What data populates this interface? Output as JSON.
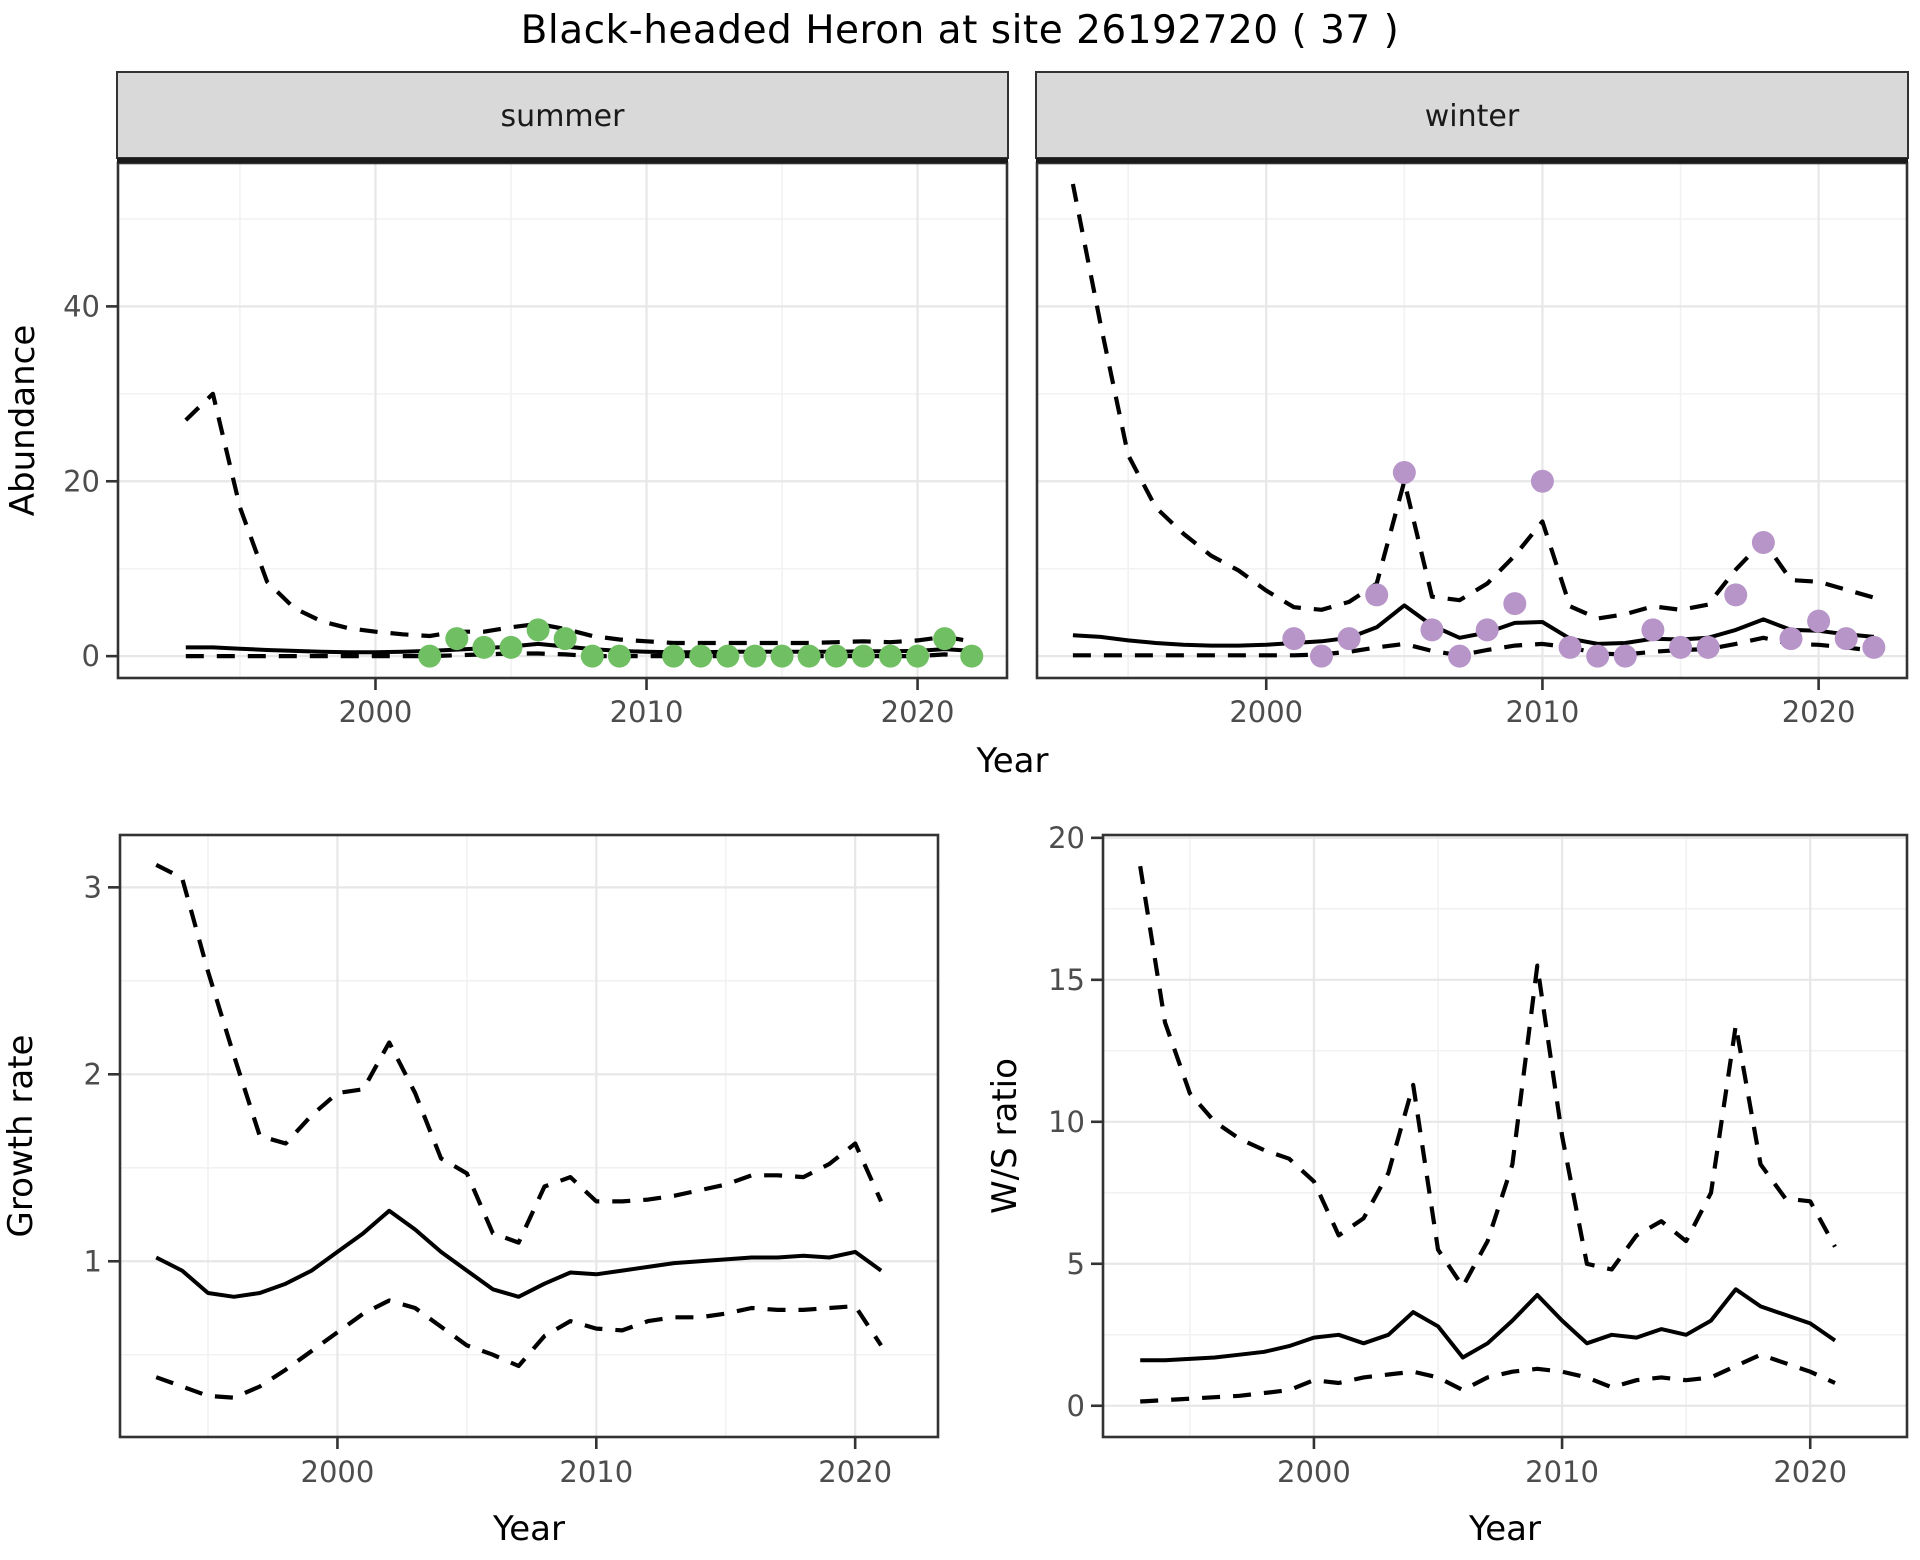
{
  "title": "Black-headed Heron at site 26192720 ( 37 )",
  "shared": {
    "top_xlabel": "Year"
  },
  "colors": {
    "summer_point": "#70BF63",
    "winter_point": "#B795C9",
    "line": "#000000",
    "grid_major": "#E7E7E7",
    "grid_minor": "#F2F2F2",
    "panel_border": "#333333",
    "tick": "#333333",
    "tick_label": "#4D4D4D",
    "strip_bg": "#D9D9D9",
    "strip_text": "#1A1A1A",
    "axis_title": "#000000"
  },
  "chart_data": [
    {
      "id": "abundance-summer",
      "type": "line",
      "facet_label": "summer",
      "ylabel": "Abundance",
      "xlabel": null,
      "x_ticks": [
        2000,
        2010,
        2020
      ],
      "y_ticks": [
        0,
        20,
        40
      ],
      "y_tick_labels_visible": true,
      "xlim": [
        1990.5,
        2023.3
      ],
      "ylim": [
        -2.5,
        56.4
      ],
      "years": [
        1993,
        1994,
        1995,
        1996,
        1997,
        1998,
        1999,
        2000,
        2001,
        2002,
        2003,
        2004,
        2005,
        2006,
        2007,
        2008,
        2009,
        2010,
        2011,
        2012,
        2013,
        2014,
        2015,
        2016,
        2017,
        2018,
        2019,
        2020,
        2021,
        2022
      ],
      "series": [
        {
          "name": "median",
          "style": "solid",
          "values": [
            1.0,
            1.0,
            0.85,
            0.7,
            0.6,
            0.5,
            0.45,
            0.45,
            0.5,
            0.6,
            0.75,
            0.9,
            1.1,
            1.4,
            1.1,
            0.8,
            0.6,
            0.5,
            0.45,
            0.45,
            0.5,
            0.5,
            0.5,
            0.5,
            0.5,
            0.55,
            0.55,
            0.6,
            0.8,
            0.6
          ]
        },
        {
          "name": "upper_ci",
          "style": "dashed",
          "values": [
            27,
            30,
            17,
            8.5,
            5.5,
            4.0,
            3.2,
            2.8,
            2.5,
            2.3,
            2.8,
            2.8,
            3.3,
            3.7,
            3.1,
            2.3,
            1.9,
            1.7,
            1.5,
            1.5,
            1.5,
            1.5,
            1.5,
            1.5,
            1.6,
            1.7,
            1.6,
            1.8,
            2.2,
            1.7
          ]
        },
        {
          "name": "lower_ci",
          "style": "dashed",
          "values": [
            0,
            0,
            0,
            0,
            0,
            0,
            0,
            0,
            0,
            0,
            0.1,
            0.2,
            0.3,
            0.3,
            0.2,
            0,
            0,
            0,
            0,
            0,
            0,
            0,
            0,
            0,
            0,
            0,
            0,
            0,
            0.2,
            0
          ]
        }
      ],
      "points": {
        "color_key": "summer_point",
        "data": [
          [
            2002,
            0
          ],
          [
            2003,
            2
          ],
          [
            2004,
            1
          ],
          [
            2005,
            1
          ],
          [
            2006,
            3
          ],
          [
            2007,
            2
          ],
          [
            2008,
            0
          ],
          [
            2009,
            0
          ],
          [
            2011,
            0
          ],
          [
            2012,
            0
          ],
          [
            2013,
            0
          ],
          [
            2014,
            0
          ],
          [
            2015,
            0
          ],
          [
            2016,
            0
          ],
          [
            2017,
            0
          ],
          [
            2018,
            0
          ],
          [
            2019,
            0
          ],
          [
            2020,
            0
          ],
          [
            2021,
            2
          ],
          [
            2022,
            0
          ]
        ]
      }
    },
    {
      "id": "abundance-winter",
      "type": "line",
      "facet_label": "winter",
      "ylabel": null,
      "xlabel": null,
      "x_ticks": [
        2000,
        2010,
        2020
      ],
      "y_ticks": [
        0,
        20,
        40
      ],
      "y_tick_labels_visible": false,
      "xlim": [
        1991.7,
        2023.2
      ],
      "ylim": [
        -2.5,
        56.4
      ],
      "years": [
        1993,
        1994,
        1995,
        1996,
        1997,
        1998,
        1999,
        2000,
        2001,
        2002,
        2003,
        2004,
        2005,
        2006,
        2007,
        2008,
        2009,
        2010,
        2011,
        2012,
        2013,
        2014,
        2015,
        2016,
        2017,
        2018,
        2019,
        2020,
        2021,
        2022
      ],
      "series": [
        {
          "name": "median",
          "style": "solid",
          "values": [
            2.4,
            2.2,
            1.8,
            1.5,
            1.3,
            1.2,
            1.2,
            1.3,
            1.5,
            1.7,
            2.1,
            3.3,
            5.8,
            3.5,
            2.1,
            2.7,
            3.8,
            3.9,
            2.0,
            1.4,
            1.5,
            2.0,
            1.9,
            2.1,
            3.0,
            4.2,
            3.0,
            2.9,
            2.5,
            2.2
          ]
        },
        {
          "name": "upper_ci",
          "style": "dashed",
          "values": [
            54,
            38,
            23,
            17,
            14,
            11.5,
            9.8,
            7.5,
            5.6,
            5.3,
            6.2,
            8.3,
            20,
            6.8,
            6.4,
            8.3,
            11.5,
            15.4,
            5.7,
            4.3,
            4.8,
            5.7,
            5.3,
            5.9,
            9.9,
            13.2,
            8.7,
            8.5,
            7.6,
            6.7
          ]
        },
        {
          "name": "lower_ci",
          "style": "dashed",
          "values": [
            0.1,
            0.1,
            0.1,
            0.1,
            0.1,
            0.1,
            0.1,
            0.1,
            0.1,
            0.2,
            0.5,
            1.0,
            1.4,
            0.6,
            0.1,
            0.7,
            1.2,
            1.4,
            1.0,
            0.3,
            0.2,
            0.5,
            0.7,
            0.8,
            1.4,
            2.1,
            1.4,
            1.3,
            1.0,
            0.6
          ]
        }
      ],
      "points": {
        "color_key": "winter_point",
        "data": [
          [
            2001,
            2
          ],
          [
            2002,
            0
          ],
          [
            2003,
            2
          ],
          [
            2004,
            7
          ],
          [
            2005,
            21
          ],
          [
            2006,
            3
          ],
          [
            2007,
            0
          ],
          [
            2008,
            3
          ],
          [
            2009,
            6
          ],
          [
            2010,
            20
          ],
          [
            2011,
            1
          ],
          [
            2012,
            0
          ],
          [
            2013,
            0
          ],
          [
            2014,
            3
          ],
          [
            2015,
            1
          ],
          [
            2016,
            1
          ],
          [
            2017,
            7
          ],
          [
            2018,
            13
          ],
          [
            2019,
            2
          ],
          [
            2020,
            4
          ],
          [
            2021,
            2
          ],
          [
            2022,
            1
          ]
        ]
      }
    },
    {
      "id": "growth-rate",
      "type": "line",
      "facet_label": null,
      "ylabel": "Growth rate",
      "xlabel": "Year",
      "x_ticks": [
        2000,
        2010,
        2020
      ],
      "y_ticks": [
        1,
        2,
        3
      ],
      "y_tick_labels_visible": true,
      "xlim": [
        1991.6,
        2023.2
      ],
      "ylim": [
        0.06,
        3.28
      ],
      "years": [
        1993,
        1994,
        1995,
        1996,
        1997,
        1998,
        1999,
        2000,
        2001,
        2002,
        2003,
        2004,
        2005,
        2006,
        2007,
        2008,
        2009,
        2010,
        2011,
        2012,
        2013,
        2014,
        2015,
        2016,
        2017,
        2018,
        2019,
        2020,
        2021
      ],
      "series": [
        {
          "name": "median",
          "style": "solid",
          "values": [
            1.02,
            0.95,
            0.83,
            0.81,
            0.83,
            0.88,
            0.95,
            1.05,
            1.15,
            1.27,
            1.17,
            1.05,
            0.95,
            0.85,
            0.81,
            0.88,
            0.94,
            0.93,
            0.95,
            0.97,
            0.99,
            1.0,
            1.01,
            1.02,
            1.02,
            1.03,
            1.02,
            1.05,
            0.95
          ]
        },
        {
          "name": "upper_ci",
          "style": "dashed",
          "values": [
            3.12,
            3.05,
            2.55,
            2.1,
            1.67,
            1.63,
            1.78,
            1.9,
            1.92,
            2.17,
            1.9,
            1.55,
            1.47,
            1.15,
            1.1,
            1.4,
            1.45,
            1.32,
            1.32,
            1.33,
            1.35,
            1.38,
            1.41,
            1.46,
            1.46,
            1.45,
            1.52,
            1.63,
            1.32
          ]
        },
        {
          "name": "lower_ci",
          "style": "dashed",
          "values": [
            0.38,
            0.33,
            0.28,
            0.27,
            0.33,
            0.42,
            0.52,
            0.62,
            0.72,
            0.79,
            0.75,
            0.65,
            0.55,
            0.5,
            0.44,
            0.6,
            0.68,
            0.64,
            0.63,
            0.68,
            0.7,
            0.7,
            0.72,
            0.75,
            0.74,
            0.74,
            0.75,
            0.76,
            0.55
          ]
        }
      ],
      "points": null
    },
    {
      "id": "ws-ratio",
      "type": "line",
      "facet_label": null,
      "ylabel": "W/S ratio",
      "xlabel": "Year",
      "x_ticks": [
        2000,
        2010,
        2020
      ],
      "y_ticks": [
        0,
        5,
        10,
        15,
        20
      ],
      "y_tick_labels_visible": true,
      "xlim": [
        1991.5,
        2023.9
      ],
      "ylim": [
        -1.1,
        20.1
      ],
      "years": [
        1993,
        1994,
        1995,
        1996,
        1997,
        1998,
        1999,
        2000,
        2001,
        2002,
        2003,
        2004,
        2005,
        2006,
        2007,
        2008,
        2009,
        2010,
        2011,
        2012,
        2013,
        2014,
        2015,
        2016,
        2017,
        2018,
        2019,
        2020,
        2021
      ],
      "series": [
        {
          "name": "median",
          "style": "solid",
          "values": [
            1.6,
            1.6,
            1.65,
            1.7,
            1.8,
            1.9,
            2.1,
            2.4,
            2.5,
            2.2,
            2.5,
            3.3,
            2.8,
            1.7,
            2.2,
            3.0,
            3.9,
            3.0,
            2.2,
            2.5,
            2.4,
            2.7,
            2.5,
            3.0,
            4.1,
            3.5,
            3.2,
            2.9,
            2.3
          ]
        },
        {
          "name": "upper_ci",
          "style": "dashed",
          "values": [
            19,
            13.5,
            11,
            10,
            9.4,
            9.0,
            8.7,
            7.9,
            6.0,
            6.6,
            8.2,
            11.3,
            5.5,
            4.2,
            5.8,
            8.5,
            15.5,
            9.5,
            5.0,
            4.8,
            6.0,
            6.5,
            5.8,
            7.5,
            13.4,
            8.5,
            7.3,
            7.2,
            5.6
          ]
        },
        {
          "name": "lower_ci",
          "style": "dashed",
          "values": [
            0.15,
            0.2,
            0.25,
            0.3,
            0.35,
            0.45,
            0.55,
            0.9,
            0.8,
            1.0,
            1.1,
            1.2,
            1.0,
            0.55,
            1.0,
            1.2,
            1.3,
            1.2,
            1.0,
            0.65,
            0.9,
            1.0,
            0.9,
            1.0,
            1.4,
            1.8,
            1.5,
            1.2,
            0.8
          ]
        }
      ],
      "points": null
    }
  ]
}
